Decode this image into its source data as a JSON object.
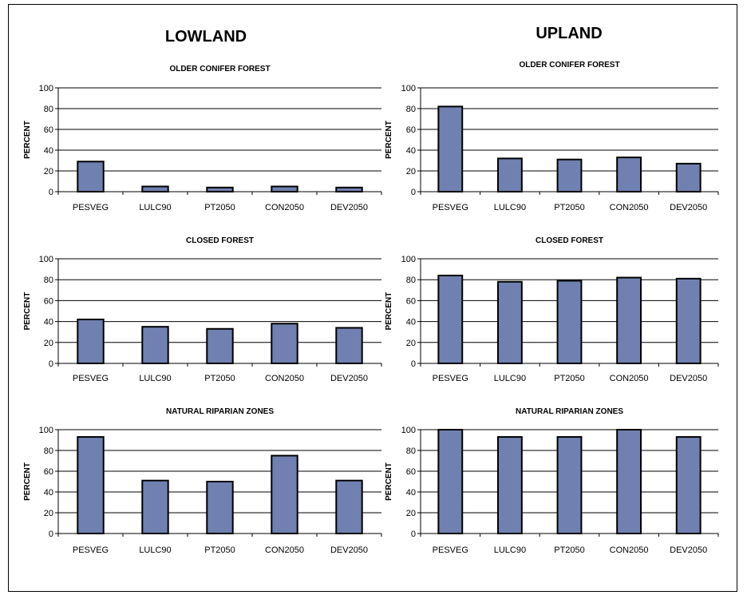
{
  "columns": [
    {
      "title": "LOWLAND"
    },
    {
      "title": "UPLAND"
    }
  ],
  "colors": {
    "bar_fill": "#7080b0",
    "bar_stroke": "#000000",
    "grid": "#000000"
  },
  "chart_data": [
    {
      "type": "bar",
      "column": "LOWLAND",
      "title": "OLDER CONIFER FOREST",
      "ylabel": "PERCENT",
      "xlabel": "",
      "ylim": [
        0,
        100
      ],
      "yticks": [
        0,
        20,
        40,
        60,
        80,
        100
      ],
      "grid": true,
      "categories": [
        "PESVEG",
        "LULC90",
        "PT2050",
        "CON2050",
        "DEV2050"
      ],
      "values": [
        29,
        5,
        4,
        5,
        4
      ]
    },
    {
      "type": "bar",
      "column": "UPLAND",
      "title": "OLDER CONIFER FOREST",
      "ylabel": "PERCENT",
      "xlabel": "",
      "ylim": [
        0,
        100
      ],
      "yticks": [
        0,
        20,
        40,
        60,
        80,
        100
      ],
      "grid": true,
      "categories": [
        "PESVEG",
        "LULC90",
        "PT2050",
        "CON2050",
        "DEV2050"
      ],
      "values": [
        82,
        32,
        31,
        33,
        27
      ]
    },
    {
      "type": "bar",
      "column": "LOWLAND",
      "title": "CLOSED FOREST",
      "ylabel": "PERCENT",
      "xlabel": "",
      "ylim": [
        0,
        100
      ],
      "yticks": [
        0,
        20,
        40,
        60,
        80,
        100
      ],
      "grid": true,
      "categories": [
        "PESVEG",
        "LULC90",
        "PT2050",
        "CON2050",
        "DEV2050"
      ],
      "values": [
        42,
        35,
        33,
        38,
        34
      ]
    },
    {
      "type": "bar",
      "column": "UPLAND",
      "title": "CLOSED FOREST",
      "ylabel": "PERCENT",
      "xlabel": "",
      "ylim": [
        0,
        100
      ],
      "yticks": [
        0,
        20,
        40,
        60,
        80,
        100
      ],
      "grid": true,
      "categories": [
        "PESVEG",
        "LULC90",
        "PT2050",
        "CON2050",
        "DEV2050"
      ],
      "values": [
        84,
        78,
        79,
        82,
        81
      ]
    },
    {
      "type": "bar",
      "column": "LOWLAND",
      "title": "NATURAL RIPARIAN ZONES",
      "ylabel": "PERCENT",
      "xlabel": "",
      "ylim": [
        0,
        100
      ],
      "yticks": [
        0,
        20,
        40,
        60,
        80,
        100
      ],
      "grid": true,
      "categories": [
        "PESVEG",
        "LULC90",
        "PT2050",
        "CON2050",
        "DEV2050"
      ],
      "values": [
        93,
        51,
        50,
        75,
        51
      ]
    },
    {
      "type": "bar",
      "column": "UPLAND",
      "title": "NATURAL RIPARIAN ZONES",
      "ylabel": "PERCENT",
      "xlabel": "",
      "ylim": [
        0,
        100
      ],
      "yticks": [
        0,
        20,
        40,
        60,
        80,
        100
      ],
      "grid": true,
      "categories": [
        "PESVEG",
        "LULC90",
        "PT2050",
        "CON2050",
        "DEV2050"
      ],
      "values": [
        100,
        93,
        93,
        100,
        93
      ]
    }
  ]
}
